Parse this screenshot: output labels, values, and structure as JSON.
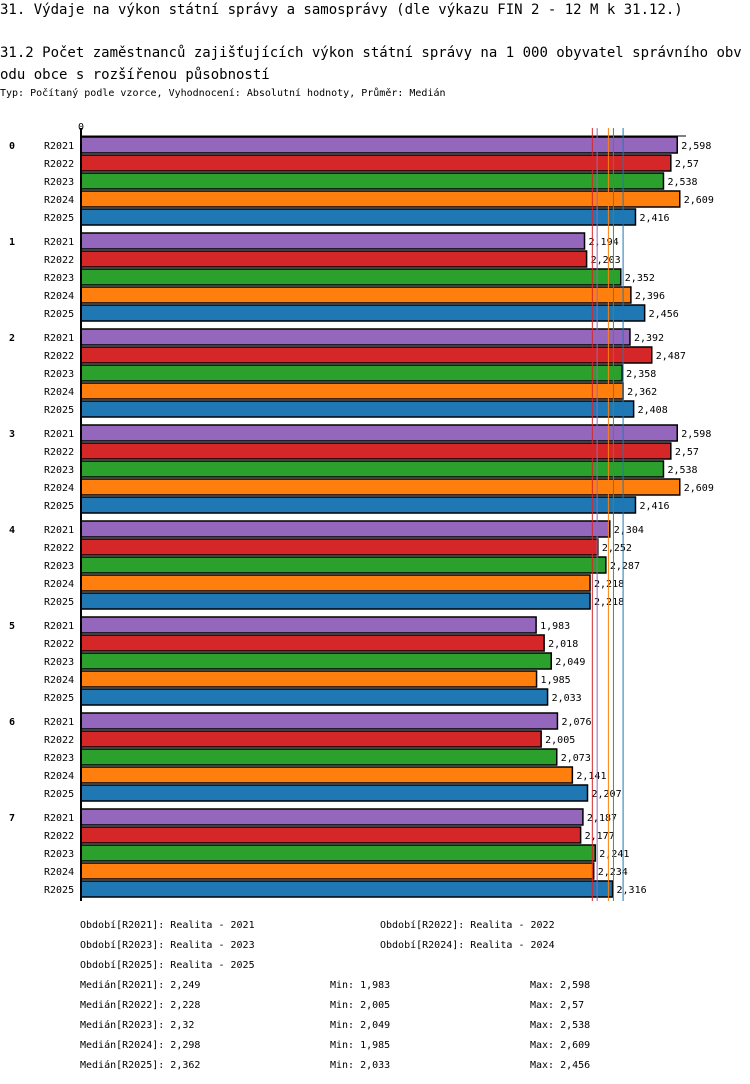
{
  "title": "31. Výdaje na výkon státní správy a samosprávy (dle výkazu FIN 2 - 12 M k 31.12.)",
  "subtitle": "31.2 Počet zaměstnanců zajišťujících výkon státní správy na 1 000 obyvatel správního obvodu obce s rozšířenou působností",
  "info": "Typ: Počítaný podle vzorce, Vyhodnocení: Absolutní hodnoty, Průměr: Medián",
  "chart_data": {
    "type": "bar",
    "orientation": "horizontal",
    "axis_zero_label": "0",
    "xlim": [
      0,
      2.7
    ],
    "categories": [
      "0",
      "1",
      "2",
      "3",
      "4",
      "5",
      "6",
      "7"
    ],
    "series": [
      {
        "name": "R2021",
        "color": "#9467bd",
        "values": [
          2.598,
          2.194,
          2.392,
          2.598,
          2.304,
          1.983,
          2.076,
          2.187
        ],
        "labels": [
          "2,598",
          "2,194",
          "2,392",
          "2,598",
          "2,304",
          "1,983",
          "2,076",
          "2,187"
        ]
      },
      {
        "name": "R2022",
        "color": "#d62728",
        "values": [
          2.57,
          2.203,
          2.487,
          2.57,
          2.252,
          2.018,
          2.005,
          2.177
        ],
        "labels": [
          "2,57",
          "2,203",
          "2,487",
          "2,57",
          "2,252",
          "2,018",
          "2,005",
          "2,177"
        ]
      },
      {
        "name": "R2023",
        "color": "#2ca02c",
        "values": [
          2.538,
          2.352,
          2.358,
          2.538,
          2.287,
          2.049,
          2.073,
          2.241
        ],
        "labels": [
          "2,538",
          "2,352",
          "2,358",
          "2,538",
          "2,287",
          "2,049",
          "2,073",
          "2,241"
        ]
      },
      {
        "name": "R2024",
        "color": "#ff7f0e",
        "values": [
          2.609,
          2.396,
          2.362,
          2.609,
          2.218,
          1.985,
          2.141,
          2.234
        ],
        "labels": [
          "2,609",
          "2,396",
          "2,362",
          "2,609",
          "2,218",
          "1,985",
          "2,141",
          "2,234"
        ]
      },
      {
        "name": "R2025",
        "color": "#1f77b4",
        "values": [
          2.416,
          2.456,
          2.408,
          2.416,
          2.218,
          2.033,
          2.207,
          2.316
        ],
        "labels": [
          "2,416",
          "2,456",
          "2,408",
          "2,416",
          "2,218",
          "2,033",
          "2,207",
          "2,316"
        ]
      }
    ],
    "medians": [
      2.249,
      2.228,
      2.32,
      2.298,
      2.362
    ]
  },
  "legend": {
    "periods": [
      "Období[R2021]: Realita - 2021",
      "Období[R2022]: Realita - 2022",
      "Období[R2023]: Realita - 2023",
      "Období[R2024]: Realita - 2024",
      "Období[R2025]: Realita - 2025"
    ],
    "stats": [
      {
        "median": "Medián[R2021]: 2,249",
        "min": "Min: 1,983",
        "max": "Max: 2,598"
      },
      {
        "median": "Medián[R2022]: 2,228",
        "min": "Min: 2,005",
        "max": "Max: 2,57"
      },
      {
        "median": "Medián[R2023]: 2,32",
        "min": "Min: 2,049",
        "max": "Max: 2,538"
      },
      {
        "median": "Medián[R2024]: 2,298",
        "min": "Min: 1,985",
        "max": "Max: 2,609"
      },
      {
        "median": "Medián[R2025]: 2,362",
        "min": "Min: 2,033",
        "max": "Max: 2,456"
      }
    ]
  }
}
